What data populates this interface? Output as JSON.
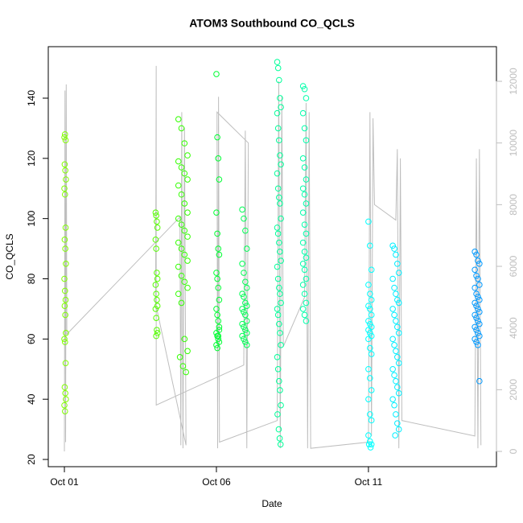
{
  "chart_data": {
    "type": "scatter",
    "title": "ATOM3 Southbound CO_QCLS",
    "x_label": "Date",
    "y_label": "CO_QCLS",
    "xlim": [
      -0.53,
      14.21
    ],
    "xticks": [
      {
        "value": 0,
        "label": "Oct 01"
      },
      {
        "value": 5,
        "label": "Oct 06"
      },
      {
        "value": 10,
        "label": "Oct 11"
      }
    ],
    "ylim": [
      17.6,
      157.1
    ],
    "yticks": [
      20,
      40,
      60,
      80,
      100,
      120,
      140
    ],
    "y2lim": [
      -496,
      13123
    ],
    "y2ticks": [
      0,
      2000,
      4000,
      6000,
      8000,
      10000,
      12000
    ],
    "y2_color": "#bebebe",
    "series": [
      {
        "color": "#bebebe",
        "axis": "y2",
        "x": [
          0,
          0.02,
          0.04,
          0.06,
          0.08,
          3.8,
          3.83,
          3.86,
          3.9,
          3.95,
          4.0,
          3.0,
          3.02,
          3.02,
          5.9,
          5.95,
          6.0,
          6.05,
          5.02,
          5.04,
          5.07,
          5.1,
          7.0,
          7.05,
          7.1,
          7.15,
          7.2,
          7.9,
          7.95,
          8.0,
          8.05,
          8.1,
          10.0,
          10.05,
          10.1,
          10.15,
          10.2,
          10.9,
          10.95,
          11.0,
          11.05,
          11.1,
          13.5,
          13.55,
          13.6,
          13.65,
          13.7
        ],
        "values": [
          0,
          11700,
          300,
          11900,
          3800,
          7600,
          200,
          11000,
          100,
          10500,
          200,
          4800,
          12500,
          1500,
          2800,
          10400,
          100,
          10000,
          11000,
          100,
          11500,
          300,
          1000,
          12000,
          100,
          11500,
          3400,
          5000,
          11300,
          100,
          11000,
          100,
          300,
          11000,
          500,
          10800,
          8000,
          7500,
          9800,
          100,
          9500,
          1000,
          500,
          9500,
          100,
          9800,
          200
        ]
      },
      {
        "color": "#80ff00",
        "x": [
          0,
          0.02,
          0.04,
          0.01,
          0.03,
          0.05,
          0,
          0.02,
          0.04,
          0.01,
          0.03,
          0.05,
          0,
          0.02,
          0.04,
          0.01,
          0.03,
          0.05,
          0,
          0.02,
          0.04,
          0.01,
          0.03,
          0.05,
          0,
          0.02
        ],
        "values": [
          127,
          128,
          126,
          118,
          116,
          113,
          110,
          108,
          97,
          93,
          90,
          85,
          80,
          76,
          73,
          71,
          68,
          62,
          60,
          59,
          52,
          44,
          42,
          40,
          38,
          36
        ]
      },
      {
        "color": "#55ff00",
        "x": [
          3.0,
          3.02,
          3.04,
          3.06,
          3.0,
          3.02,
          3.04,
          3.06,
          3.0,
          3.02,
          3.04,
          3.06,
          3.0,
          3.02,
          3.04,
          3.06,
          3.02
        ],
        "values": [
          102,
          101,
          99,
          97,
          93,
          90,
          82,
          80,
          78,
          75,
          73,
          71,
          70,
          67,
          63,
          62,
          61
        ]
      },
      {
        "color": "#33ff00",
        "x": [
          3.75,
          3.85,
          3.95,
          4.05,
          3.75,
          3.85,
          3.95,
          4.05,
          3.75,
          3.85,
          3.95,
          4.05,
          3.75,
          3.85,
          3.95,
          4.05,
          3.75,
          3.85,
          3.95,
          4.05,
          3.75,
          3.85,
          3.95,
          4.05,
          3.75,
          3.85,
          3.95,
          4.05,
          3.8,
          3.9,
          4.0
        ],
        "values": [
          133,
          130,
          125,
          121,
          119,
          117,
          115,
          113,
          111,
          108,
          105,
          102,
          100,
          98,
          96,
          94,
          92,
          90,
          88,
          86,
          84,
          81,
          79,
          77,
          75,
          72,
          60,
          56,
          54,
          51,
          49
        ]
      },
      {
        "color": "#00ff33",
        "x": [
          5.0,
          5.03,
          5.06,
          5.09,
          5.0,
          5.03,
          5.06,
          5.09,
          5.0,
          5.03,
          5.06,
          5.09,
          5.0,
          5.03,
          5.06,
          5.09,
          5.0,
          5.03,
          5.06,
          5.09,
          5.0,
          5.03,
          5.06,
          5.09
        ],
        "values": [
          148,
          127,
          120,
          113,
          102,
          95,
          90,
          88,
          82,
          80,
          77,
          73,
          70,
          68,
          66,
          64,
          62,
          61,
          60,
          59,
          58,
          57,
          61,
          63
        ]
      },
      {
        "color": "#00ff55",
        "x": [
          5.85,
          5.9,
          5.95,
          6.0,
          5.85,
          5.9,
          5.95,
          6.0,
          5.85,
          5.9,
          5.95,
          6.0,
          5.85,
          5.9,
          5.95,
          6.0,
          5.85,
          5.9,
          5.95,
          6.0,
          5.85,
          5.9,
          5.95,
          6.0
        ],
        "values": [
          103,
          100,
          96,
          90,
          85,
          82,
          79,
          77,
          75,
          74,
          72,
          71,
          70,
          69,
          68,
          66,
          65,
          64,
          63,
          62,
          61,
          60,
          59,
          58
        ]
      },
      {
        "color": "#00ff99",
        "x": [
          7.0,
          7.03,
          7.06,
          7.09,
          7.12,
          7.0,
          7.03,
          7.06,
          7.09,
          7.12,
          7.0,
          7.03,
          7.06,
          7.09,
          7.12,
          7.0,
          7.03,
          7.06,
          7.09,
          7.12,
          7.0,
          7.03,
          7.06,
          7.09,
          7.12,
          7.0,
          7.03,
          7.06,
          7.09,
          7.12,
          7.0,
          7.03,
          7.06,
          7.09,
          7.12,
          7.01,
          7.05,
          7.08,
          7.11
        ],
        "values": [
          152,
          150,
          146,
          140,
          137,
          135,
          130,
          126,
          121,
          118,
          115,
          110,
          107,
          105,
          100,
          97,
          95,
          92,
          89,
          86,
          84,
          80,
          77,
          75,
          72,
          70,
          68,
          65,
          62,
          58,
          54,
          50,
          46,
          43,
          38,
          35,
          30,
          27,
          25
        ]
      },
      {
        "color": "#00ffaa",
        "x": [
          7.85,
          7.9,
          7.95,
          7.85,
          7.9,
          7.95,
          7.85,
          7.9,
          7.95,
          7.85,
          7.9,
          7.95,
          7.85,
          7.9,
          7.95,
          7.85,
          7.9,
          7.95,
          7.85,
          7.9,
          7.95,
          7.85,
          7.9,
          7.95,
          7.85,
          7.9,
          7.95
        ],
        "values": [
          144,
          143,
          140,
          135,
          130,
          126,
          120,
          117,
          113,
          110,
          108,
          105,
          102,
          98,
          95,
          92,
          89,
          87,
          85,
          83,
          80,
          78,
          75,
          72,
          70,
          68,
          66
        ]
      },
      {
        "color": "#00ffff",
        "x": [
          10.0,
          10.05,
          10.1,
          10.0,
          10.05,
          10.1,
          10.0,
          10.05,
          10.1,
          10.0,
          10.05,
          10.1,
          10.0,
          10.05,
          10.1,
          10.0,
          10.05,
          10.1,
          10.0,
          10.05,
          10.1,
          10.0,
          10.05,
          10.1,
          10.0,
          10.05,
          10.1,
          10.02,
          10.07
        ],
        "values": [
          99,
          91,
          83,
          78,
          75,
          73,
          71,
          70,
          68,
          66,
          65,
          64,
          63,
          62,
          61,
          60,
          57,
          55,
          50,
          47,
          43,
          40,
          35,
          33,
          28,
          26,
          25,
          25,
          24
        ]
      },
      {
        "color": "#00eeff",
        "x": [
          10.8,
          10.85,
          10.9,
          10.95,
          11.0,
          10.8,
          10.85,
          10.9,
          10.95,
          11.0,
          10.8,
          10.85,
          10.9,
          10.95,
          11.0,
          10.8,
          10.85,
          10.9,
          10.95,
          11.0,
          10.8,
          10.85,
          10.9,
          10.95,
          11.0,
          10.8,
          10.85,
          10.9,
          10.95,
          11.0,
          10.88
        ],
        "values": [
          91,
          90,
          88,
          85,
          82,
          80,
          77,
          75,
          73,
          72,
          70,
          68,
          66,
          64,
          62,
          60,
          58,
          56,
          54,
          52,
          50,
          48,
          46,
          44,
          42,
          40,
          38,
          35,
          32,
          30,
          28
        ]
      },
      {
        "color": "#0099ff",
        "x": [
          13.5,
          13.55,
          13.6,
          13.65,
          13.5,
          13.55,
          13.6,
          13.65,
          13.5,
          13.55,
          13.6,
          13.65,
          13.5,
          13.55,
          13.6,
          13.65,
          13.5,
          13.55,
          13.6,
          13.65,
          13.5,
          13.55,
          13.6,
          13.65,
          13.5,
          13.55,
          13.6,
          13.65
        ],
        "values": [
          89,
          88,
          86,
          85,
          83,
          81,
          80,
          78,
          77,
          75,
          74,
          73,
          72,
          71,
          70,
          69,
          68,
          67,
          66,
          65,
          64,
          63,
          62,
          61,
          60,
          59,
          58,
          46
        ]
      }
    ]
  }
}
